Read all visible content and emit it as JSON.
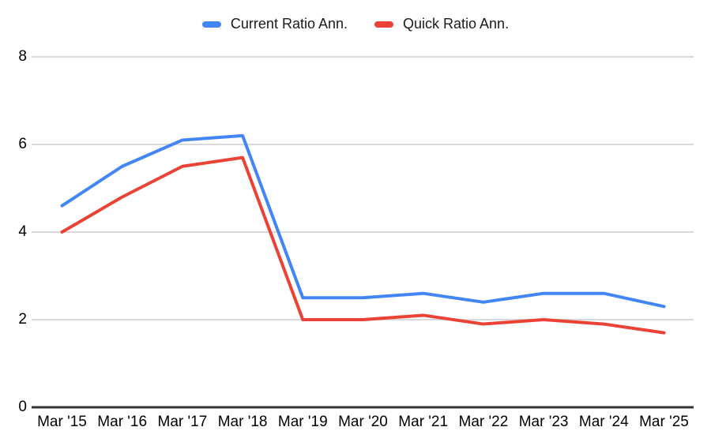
{
  "chart_data": {
    "type": "line",
    "title": "",
    "xlabel": "",
    "ylabel": "",
    "categories": [
      "Mar '15",
      "Mar '16",
      "Mar '17",
      "Mar '18",
      "Mar '19",
      "Mar '20",
      "Mar '21",
      "Mar '22",
      "Mar '23",
      "Mar '24",
      "Mar '25"
    ],
    "series": [
      {
        "name": "Current Ratio Ann.",
        "color": "#4285f4",
        "values": [
          4.6,
          5.5,
          6.1,
          6.2,
          2.5,
          2.5,
          2.6,
          2.4,
          2.6,
          2.6,
          2.3
        ]
      },
      {
        "name": "Quick Ratio Ann.",
        "color": "#ea4335",
        "values": [
          4.0,
          4.8,
          5.5,
          5.7,
          2.0,
          2.0,
          2.1,
          1.9,
          2.0,
          1.9,
          1.7
        ]
      }
    ],
    "ylim": [
      0,
      8
    ],
    "y_ticks": [
      0,
      2,
      4,
      6,
      8
    ],
    "grid": "horizontal",
    "legend_position": "top-center",
    "gridline_color": "#d9d9d9",
    "axis_line_color": "#333333",
    "background_color": "#ffffff"
  }
}
